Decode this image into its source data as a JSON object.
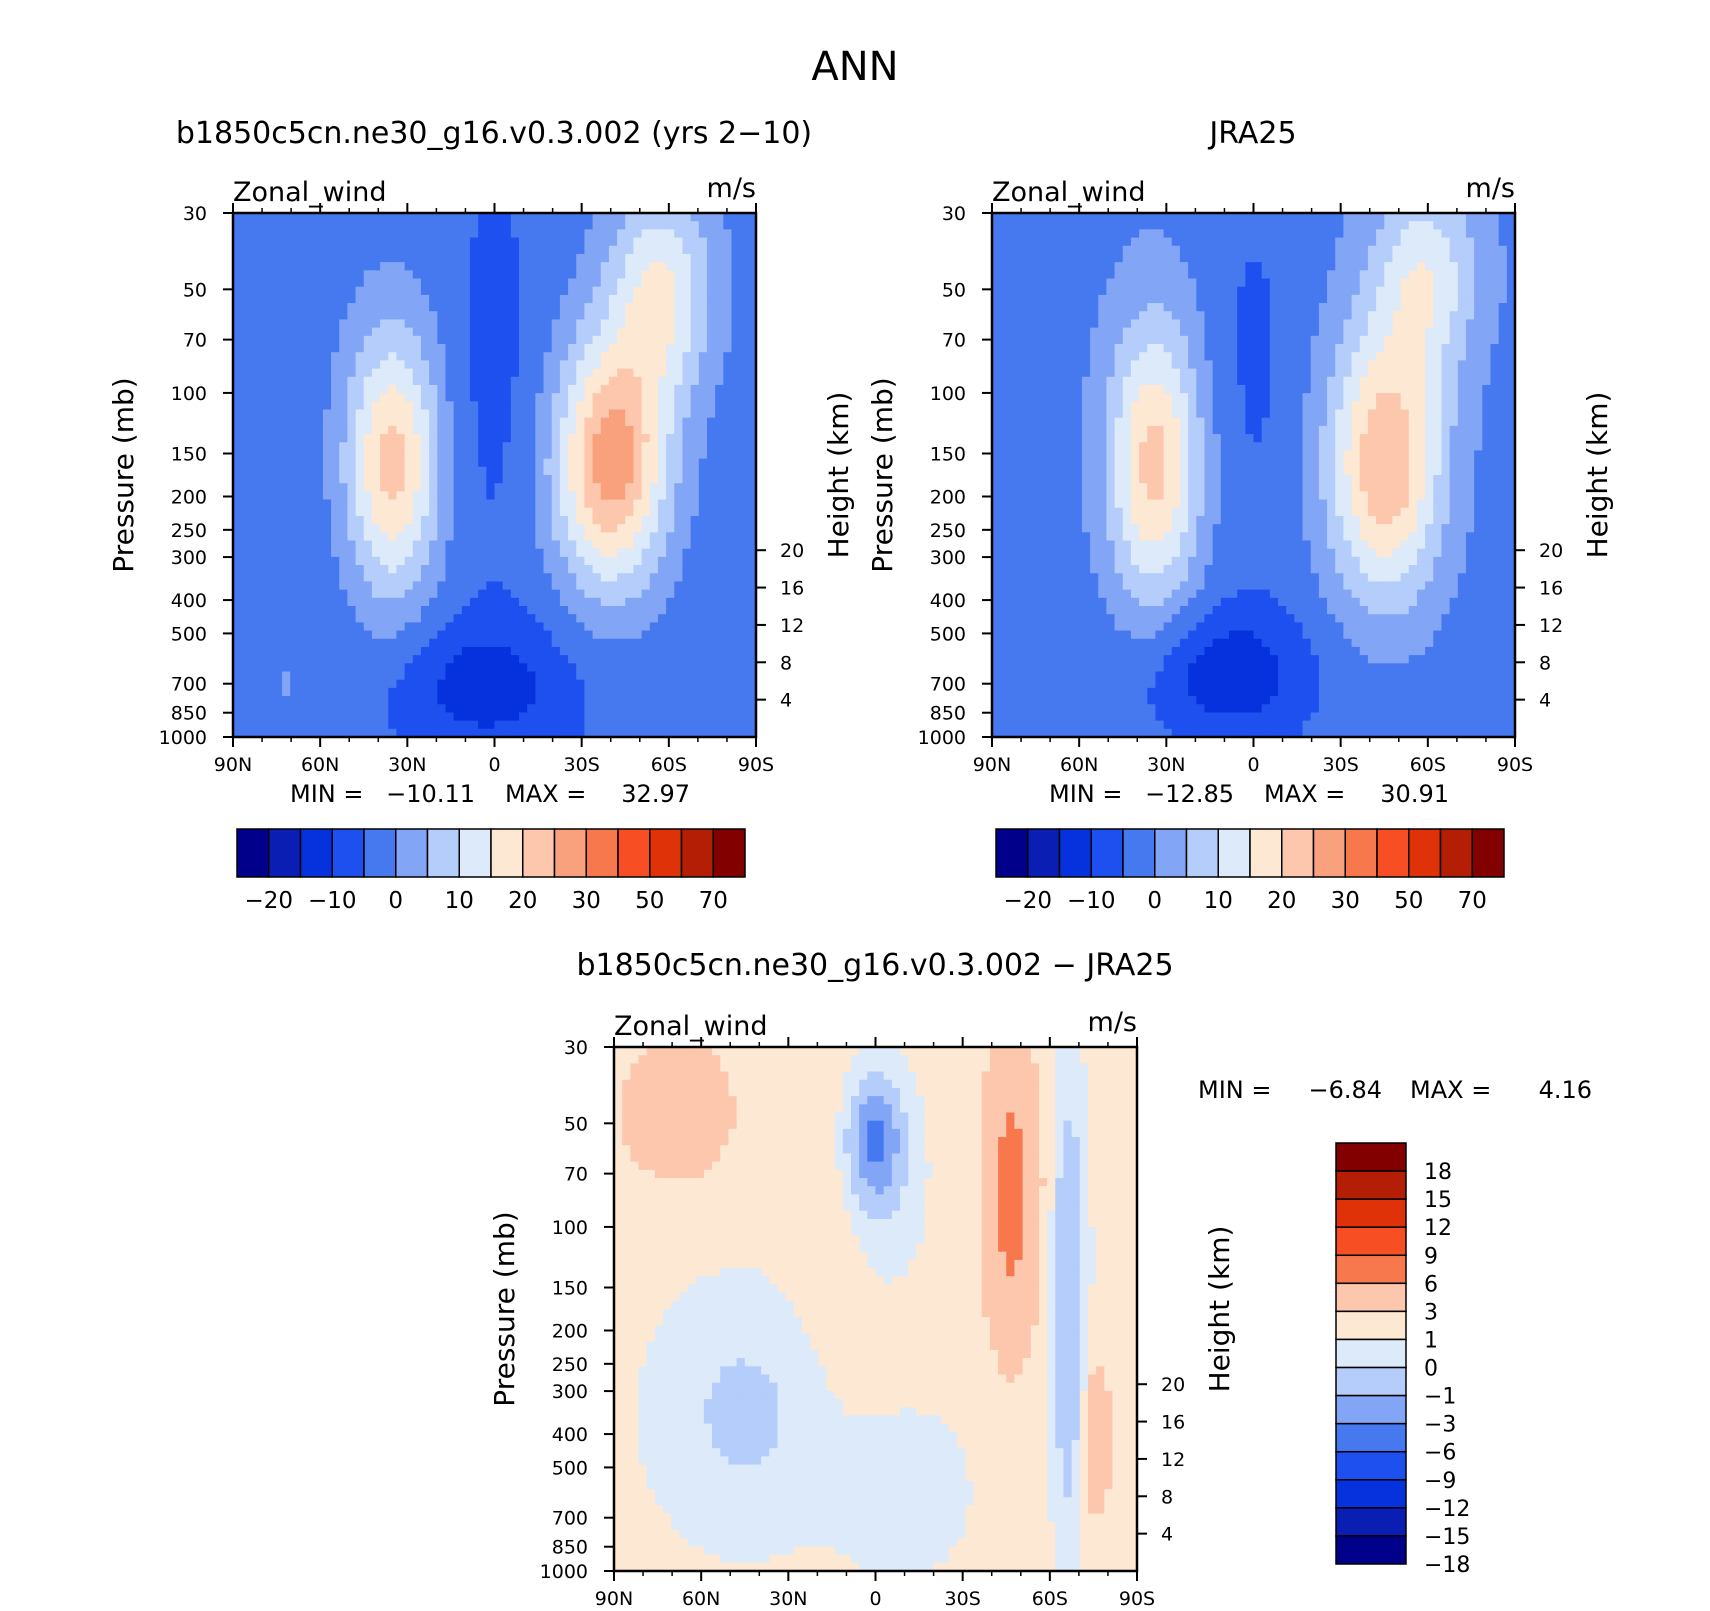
{
  "page": {
    "title": "ANN"
  },
  "chart_data": [
    {
      "type": "heatmap",
      "id": "model",
      "title": "b1850c5cn.ne30_g16.v0.3.002 (yrs 2−10)",
      "left_label": "Zonal_wind",
      "right_label": "m/s",
      "ylabel": "Pressure (mb)",
      "y2label": "Height (km)",
      "x_ticks": [
        "90N",
        "60N",
        "30N",
        "0",
        "30S",
        "60S",
        "90S"
      ],
      "y_ticks": [
        "30",
        "50",
        "70",
        "100",
        "150",
        "200",
        "250",
        "300",
        "400",
        "500",
        "700",
        "850",
        "1000"
      ],
      "y2_ticks": [
        "20",
        "16",
        "12",
        "8",
        "4"
      ],
      "stats": {
        "min_label": "MIN =",
        "min": "−10.11",
        "max_label": "MAX =",
        "max": "32.97"
      },
      "colorbar": {
        "orientation": "horizontal",
        "labels": [
          "−20",
          "−10",
          "0",
          "10",
          "20",
          "30",
          "50",
          "70"
        ],
        "colors": [
          "#00008b",
          "#0a1eb4",
          "#0532dc",
          "#1e50f0",
          "#4678f0",
          "#82a5f5",
          "#b4cdfa",
          "#dceafa",
          "#fde8d4",
          "#fcc7ac",
          "#f9a07c",
          "#f7784c",
          "#f74f23",
          "#e03209",
          "#b41e05",
          "#820000"
        ]
      }
    },
    {
      "type": "heatmap",
      "id": "obs",
      "title": "JRA25",
      "left_label": "Zonal_wind",
      "right_label": "m/s",
      "ylabel": "Pressure (mb)",
      "y2label": "Height (km)",
      "x_ticks": [
        "90N",
        "60N",
        "30N",
        "0",
        "30S",
        "60S",
        "90S"
      ],
      "y_ticks": [
        "30",
        "50",
        "70",
        "100",
        "150",
        "200",
        "250",
        "300",
        "400",
        "500",
        "700",
        "850",
        "1000"
      ],
      "y2_ticks": [
        "20",
        "16",
        "12",
        "8",
        "4"
      ],
      "stats": {
        "min_label": "MIN =",
        "min": "−12.85",
        "max_label": "MAX =",
        "max": "30.91"
      },
      "colorbar": {
        "orientation": "horizontal",
        "labels": [
          "−20",
          "−10",
          "0",
          "10",
          "20",
          "30",
          "50",
          "70"
        ],
        "colors": [
          "#00008b",
          "#0a1eb4",
          "#0532dc",
          "#1e50f0",
          "#4678f0",
          "#82a5f5",
          "#b4cdfa",
          "#dceafa",
          "#fde8d4",
          "#fcc7ac",
          "#f9a07c",
          "#f7784c",
          "#f74f23",
          "#e03209",
          "#b41e05",
          "#820000"
        ]
      }
    },
    {
      "type": "heatmap",
      "id": "diff",
      "title": "b1850c5cn.ne30_g16.v0.3.002 − JRA25",
      "left_label": "Zonal_wind",
      "right_label": "m/s",
      "ylabel": "Pressure (mb)",
      "y2label": "Height (km)",
      "x_ticks": [
        "90N",
        "60N",
        "30N",
        "0",
        "30S",
        "60S",
        "90S"
      ],
      "y_ticks": [
        "30",
        "50",
        "70",
        "100",
        "150",
        "200",
        "250",
        "300",
        "400",
        "500",
        "700",
        "850",
        "1000"
      ],
      "y2_ticks": [
        "20",
        "16",
        "12",
        "8",
        "4"
      ],
      "stats": {
        "min_label": "MIN =",
        "min": "−6.84",
        "max_label": "MAX =",
        "max": "4.16"
      },
      "colorbar": {
        "orientation": "vertical",
        "labels": [
          "18",
          "15",
          "12",
          "9",
          "6",
          "3",
          "1",
          "0",
          "−1",
          "−3",
          "−6",
          "−9",
          "−12",
          "−15",
          "−18"
        ],
        "colors": [
          "#820000",
          "#b41e05",
          "#e03209",
          "#f74f23",
          "#f7784c",
          "#fcc7ac",
          "#fde8d4",
          "#dceafa",
          "#b4cdfa",
          "#82a5f5",
          "#4678f0",
          "#1e50f0",
          "#0532dc",
          "#0a1eb4",
          "#00008b"
        ]
      }
    }
  ]
}
